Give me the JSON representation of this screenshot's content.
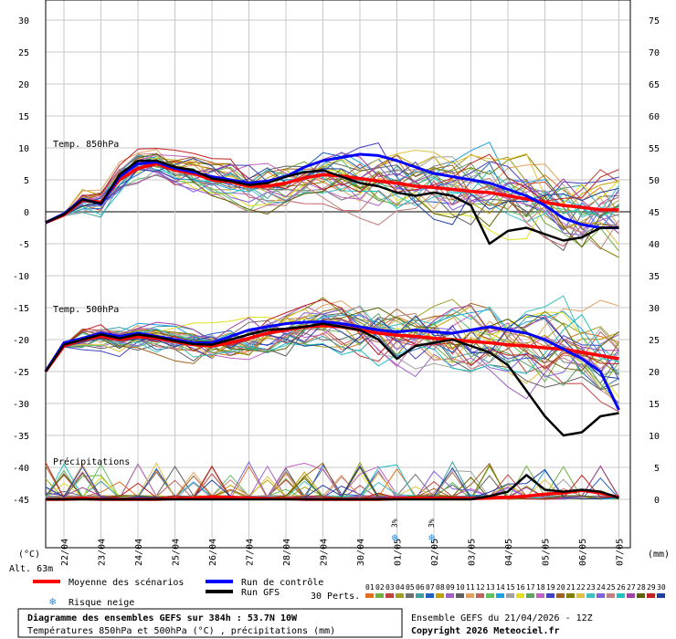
{
  "chart_data": {
    "type": "line",
    "title": "Diagramme des ensembles GEFS sur 384h : 53.7N 10W",
    "subtitle": "Températures 850hPa et 500hPa (°C) , précipitations (mm)",
    "run_info": "Ensemble GEFS du 21/04/2026 - 12Z",
    "copyright": "Copyright 2026 Meteociel.fr",
    "altitude": "Alt. 63m",
    "left_unit": "(°C)",
    "right_unit": "(mm)",
    "left_ticks": [
      30,
      25,
      20,
      15,
      10,
      5,
      0,
      -5,
      -10,
      -15,
      -20,
      -25,
      -30,
      -35,
      -40,
      -45
    ],
    "right_ticks": [
      75,
      70,
      65,
      60,
      55,
      50,
      45,
      40,
      35,
      30,
      25,
      20,
      15,
      10,
      5,
      0
    ],
    "ylim": [
      -45,
      30
    ],
    "x_dates": [
      "22/04",
      "23/04",
      "24/04",
      "25/04",
      "26/04",
      "27/04",
      "28/04",
      "29/04",
      "30/04",
      "01/05",
      "02/05",
      "03/05",
      "04/05",
      "05/05",
      "06/05",
      "07/05"
    ],
    "panels": {
      "t850": "Temp. 850hPa",
      "t500": "Temp. 500hPa",
      "precip": "Précipitations"
    },
    "snow_markers": [
      {
        "date": "01/05",
        "pct": "3%"
      },
      {
        "date": "02/05",
        "pct": "3%"
      }
    ],
    "legend": {
      "mean": "Moyenne des scénarios",
      "control": "Run de contrôle",
      "gfs": "Run GFS",
      "snow": "Risque neige",
      "perts_label": "30 Perts.",
      "pert_numbers": [
        "01",
        "02",
        "03",
        "04",
        "05",
        "06",
        "07",
        "08",
        "09",
        "10",
        "11",
        "12",
        "13",
        "14",
        "15",
        "16",
        "17",
        "18",
        "19",
        "20",
        "21",
        "22",
        "23",
        "24",
        "25",
        "26",
        "27",
        "28",
        "29",
        "30"
      ],
      "pert_colors": [
        "#e07020",
        "#70b040",
        "#c04040",
        "#a0a020",
        "#707070",
        "#40a0a0",
        "#2060c0",
        "#c0a000",
        "#a060c0",
        "#606060",
        "#e0a060",
        "#c06060",
        "#60c060",
        "#20a0e0",
        "#a0a0a0",
        "#e0e020",
        "#60a060",
        "#c060c0",
        "#4040c0",
        "#a06020",
        "#808000",
        "#e0c040",
        "#40c0c0",
        "#8060e0",
        "#c08080",
        "#20c0c0",
        "#a040a0",
        "#606000",
        "#c02020",
        "#2040a0"
      ]
    },
    "colors": {
      "mean": "#ff0000",
      "control": "#0000ff",
      "gfs": "#000000",
      "grid": "#c8c8c8",
      "zero_line": "#808080"
    },
    "series": [
      {
        "name": "Moyenne des scénarios",
        "panel": "t850",
        "x": [
          21.5,
          22,
          22.5,
          23,
          23.5,
          24,
          24.5,
          25,
          25.5,
          26,
          26.5,
          27,
          27.5,
          28,
          28.5,
          29,
          29.5,
          30,
          30.5,
          31,
          31.5,
          32,
          32.5,
          33,
          33.5,
          34,
          34.5,
          35,
          35.5,
          36,
          36.5,
          37
        ],
        "y": [
          -1.7,
          -0.5,
          1.8,
          1.5,
          5,
          6.8,
          7.5,
          6.5,
          6,
          5,
          4.7,
          4,
          4,
          4.5,
          5.3,
          5.8,
          5.6,
          5.2,
          4.8,
          4.5,
          4,
          3.8,
          3.5,
          3.2,
          3,
          2.5,
          2,
          1.5,
          1,
          0.7,
          0.3,
          0.3
        ]
      },
      {
        "name": "Run de contrôle",
        "panel": "t850",
        "x": [
          21.5,
          22,
          22.5,
          23,
          23.5,
          24,
          24.5,
          25,
          25.5,
          26,
          26.5,
          27,
          27.5,
          28,
          28.5,
          29,
          29.5,
          30,
          30.5,
          31,
          31.5,
          32,
          32.5,
          33,
          33.5,
          34,
          34.5,
          35,
          35.5,
          36,
          36.5,
          37
        ],
        "y": [
          -1.7,
          -0.3,
          2,
          1.2,
          5.5,
          7.5,
          7.8,
          6.8,
          6.2,
          5.5,
          5,
          4.5,
          4.8,
          5.5,
          7,
          8,
          8.5,
          9,
          8.8,
          8,
          7,
          6,
          5.5,
          5,
          4.5,
          3.5,
          2.5,
          1,
          -1,
          -2,
          -2.5,
          -2.5
        ]
      },
      {
        "name": "Run GFS",
        "panel": "t850",
        "x": [
          21.5,
          22,
          22.5,
          23,
          23.5,
          24,
          24.5,
          25,
          25.5,
          26,
          26.5,
          27,
          27.5,
          28,
          28.5,
          29,
          29.5,
          30,
          30.5,
          31,
          31.5,
          32,
          32.5,
          33,
          33.5,
          34,
          34.5,
          35,
          35.5,
          36,
          36.5,
          37
        ],
        "y": [
          -1.7,
          -0.4,
          1.9,
          1.3,
          5.8,
          8,
          8,
          7,
          6.5,
          5.2,
          4.8,
          4.2,
          4.5,
          5.5,
          6.2,
          6.5,
          5.5,
          4.5,
          4,
          3,
          2.5,
          3,
          2.5,
          1,
          -5,
          -3,
          -2.5,
          -3.5,
          -4.5,
          -4,
          -2.5,
          -2.5
        ]
      },
      {
        "name": "Moyenne des scénarios",
        "panel": "t500",
        "x": [
          21.5,
          22,
          22.5,
          23,
          23.5,
          24,
          24.5,
          25,
          25.5,
          26,
          26.5,
          27,
          27.5,
          28,
          28.5,
          29,
          29.5,
          30,
          30.5,
          31,
          31.5,
          32,
          32.5,
          33,
          33.5,
          34,
          34.5,
          35,
          35.5,
          36,
          36.5,
          37
        ],
        "y": [
          -25,
          -21,
          -20,
          -19.5,
          -20,
          -19.5,
          -19.8,
          -20.3,
          -20.8,
          -21,
          -20.5,
          -19.8,
          -19,
          -18.5,
          -18,
          -17.8,
          -18,
          -18.5,
          -19,
          -19.3,
          -19.5,
          -19.8,
          -20,
          -20.3,
          -20.5,
          -20.8,
          -21,
          -21.3,
          -21.5,
          -22,
          -22.5,
          -23
        ]
      },
      {
        "name": "Run de contrôle",
        "panel": "t500",
        "x": [
          21.5,
          22,
          22.5,
          23,
          23.5,
          24,
          24.5,
          25,
          25.5,
          26,
          26.5,
          27,
          27.5,
          28,
          28.5,
          29,
          29.5,
          30,
          30.5,
          31,
          31.5,
          32,
          32.5,
          33,
          33.5,
          34,
          34.5,
          35,
          35.5,
          36,
          36.5,
          37
        ],
        "y": [
          -25,
          -20.5,
          -19.8,
          -19,
          -19.5,
          -19,
          -19.5,
          -20,
          -20.5,
          -20.5,
          -19.5,
          -18.5,
          -18,
          -17.5,
          -17.3,
          -17.2,
          -17.5,
          -18,
          -18.5,
          -18.8,
          -18.5,
          -18.8,
          -19,
          -18.5,
          -18,
          -18.5,
          -19,
          -20,
          -21.5,
          -23,
          -25,
          -31
        ]
      },
      {
        "name": "Run GFS",
        "panel": "t500",
        "x": [
          21.5,
          22,
          22.5,
          23,
          23.5,
          24,
          24.5,
          25,
          25.5,
          26,
          26.5,
          27,
          27.5,
          28,
          28.5,
          29,
          29.5,
          30,
          30.5,
          31,
          31.5,
          32,
          32.5,
          33,
          33.5,
          34,
          34.5,
          35,
          35.5,
          36,
          36.5,
          37
        ],
        "y": [
          -25,
          -20.8,
          -20,
          -19.2,
          -19.8,
          -19.2,
          -19.6,
          -20.2,
          -20.7,
          -20.8,
          -20,
          -19.2,
          -18.5,
          -18.3,
          -18,
          -17.5,
          -18,
          -18.5,
          -20,
          -23,
          -21,
          -20.5,
          -20,
          -21,
          -22,
          -24,
          -28,
          -32,
          -35,
          -34.5,
          -32,
          -31.5
        ]
      },
      {
        "name": "Moyenne des scénarios",
        "panel": "precip",
        "x": [
          21.5,
          22,
          22.5,
          23,
          23.5,
          24,
          24.5,
          25,
          25.5,
          26,
          26.5,
          27,
          27.5,
          28,
          28.5,
          29,
          29.5,
          30,
          30.5,
          31,
          31.5,
          32,
          32.5,
          33,
          33.5,
          34,
          34.5,
          35,
          35.5,
          36,
          36.5,
          37
        ],
        "y": [
          0,
          0,
          0.1,
          0,
          0,
          0,
          0,
          0.1,
          0.2,
          0.4,
          0.3,
          0.2,
          0.1,
          0.1,
          0,
          0,
          0,
          0,
          0,
          0.1,
          0.2,
          0.2,
          0.1,
          0.1,
          0.2,
          0.3,
          0.5,
          0.8,
          1,
          1.4,
          1,
          0.3
        ]
      },
      {
        "name": "Run GFS",
        "panel": "precip",
        "x": [
          21.5,
          22,
          22.5,
          23,
          23.5,
          24,
          24.5,
          25,
          25.5,
          26,
          26.5,
          27,
          27.5,
          28,
          28.5,
          29,
          29.5,
          30,
          30.5,
          31,
          31.5,
          32,
          32.5,
          33,
          33.5,
          34,
          34.5,
          35,
          35.5,
          36,
          36.5,
          37
        ],
        "y": [
          0,
          0,
          0,
          0,
          0,
          0,
          0,
          0,
          0,
          0,
          0,
          0,
          0,
          0,
          0,
          0,
          0,
          0,
          0,
          0,
          0,
          0,
          0,
          0,
          0.5,
          1.2,
          3.8,
          1.5,
          1.2,
          1.5,
          1.2,
          0.2
        ]
      }
    ]
  }
}
